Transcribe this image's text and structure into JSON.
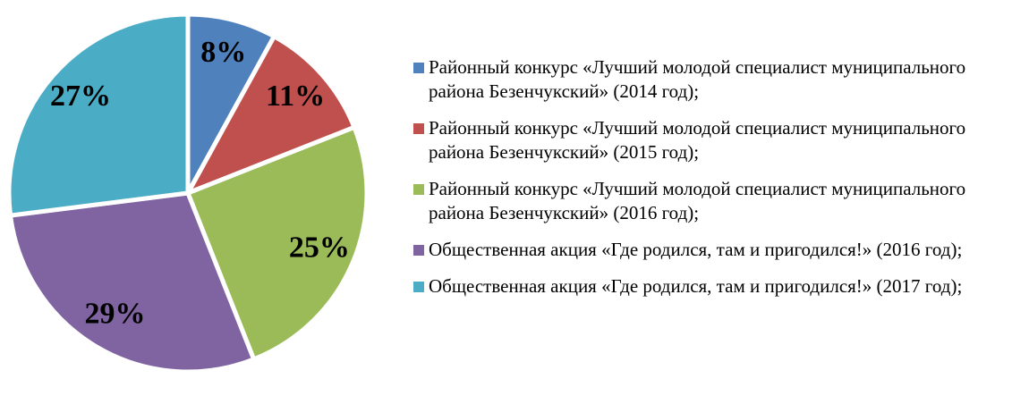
{
  "chart_data": {
    "type": "pie",
    "categories": [
      "Районный конкурс «Лучший молодой специалист муниципального района Безенчукский» (2014 год);",
      "Районный конкурс «Лучший молодой специалист муниципального района Безенчукский» (2015 год);",
      "Районный конкурс «Лучший молодой специалист муниципального района Безенчукский» (2016 год);",
      "Общественная акция «Где родился, там и пригодился!» (2016 год);",
      "Общественная акция «Где родился, там и пригодился!» (2017 год);"
    ],
    "values": [
      8,
      11,
      25,
      29,
      27
    ],
    "value_labels": [
      "8%",
      "11%",
      "25%",
      "29%",
      "27%"
    ],
    "colors": [
      "#4f81bd",
      "#c0504d",
      "#9bbb59",
      "#8064a2",
      "#4bacc6"
    ],
    "legend": "right"
  }
}
